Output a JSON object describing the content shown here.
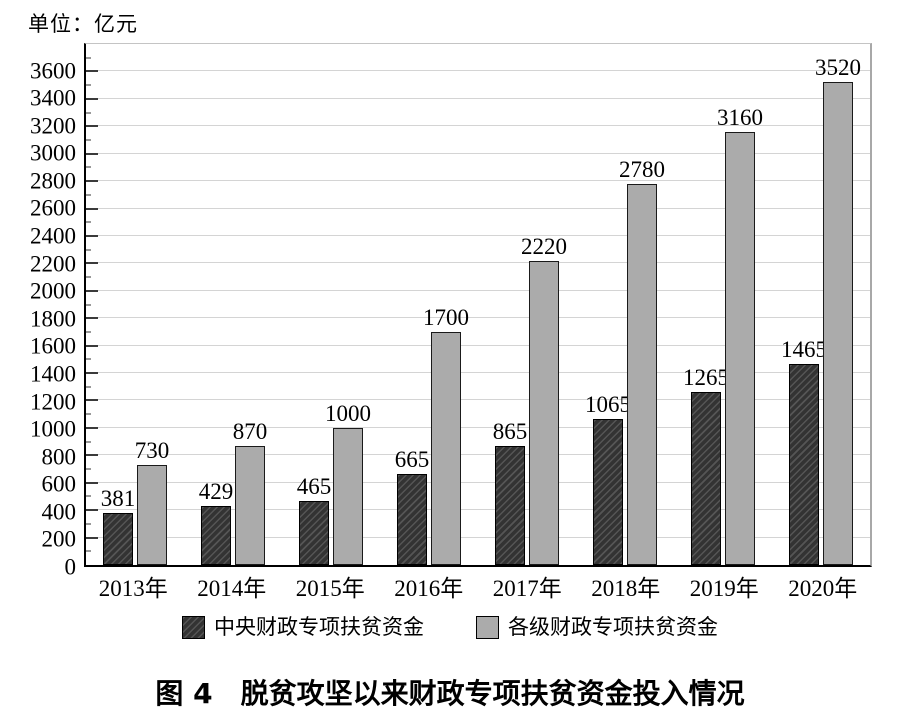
{
  "unit_label": "单位：亿元",
  "figure_title": "图 4　脱贫攻坚以来财政专项扶贫资金投入情况",
  "chart_data": {
    "type": "bar",
    "title": "图 4　脱贫攻坚以来财政专项扶贫资金投入情况",
    "unit": "单位：亿元",
    "categories": [
      "2013年",
      "2014年",
      "2015年",
      "2016年",
      "2017年",
      "2018年",
      "2019年",
      "2020年"
    ],
    "series": [
      {
        "name": "中央财政专项扶贫资金",
        "style": "dark-hatched",
        "color": "#333333",
        "hatch_color": "#555555",
        "values": [
          381,
          429,
          465,
          665,
          865,
          1065,
          1265,
          1465
        ]
      },
      {
        "name": "各级财政专项扶贫资金",
        "style": "solid-gray",
        "color": "#ababab",
        "values": [
          730,
          870,
          1000,
          1700,
          2220,
          2780,
          3160,
          3520
        ]
      }
    ],
    "ylim": [
      0,
      3800
    ],
    "ytick_step": 200,
    "yticks": [
      0,
      200,
      400,
      600,
      800,
      1000,
      1200,
      1400,
      1600,
      1800,
      2000,
      2200,
      2400,
      2600,
      2800,
      3000,
      3200,
      3400,
      3600
    ],
    "ytick_minor_step": 100,
    "grid": true,
    "legend_position": "bottom",
    "bar_value_labels": true,
    "colors": {
      "dark_bar": "#333333",
      "dark_bar_hatch": "#555555",
      "light_bar": "#ababab",
      "bar_border": "#000000",
      "gridline": "#d4d4d4",
      "axis": "#000000",
      "background": "#ffffff"
    }
  }
}
